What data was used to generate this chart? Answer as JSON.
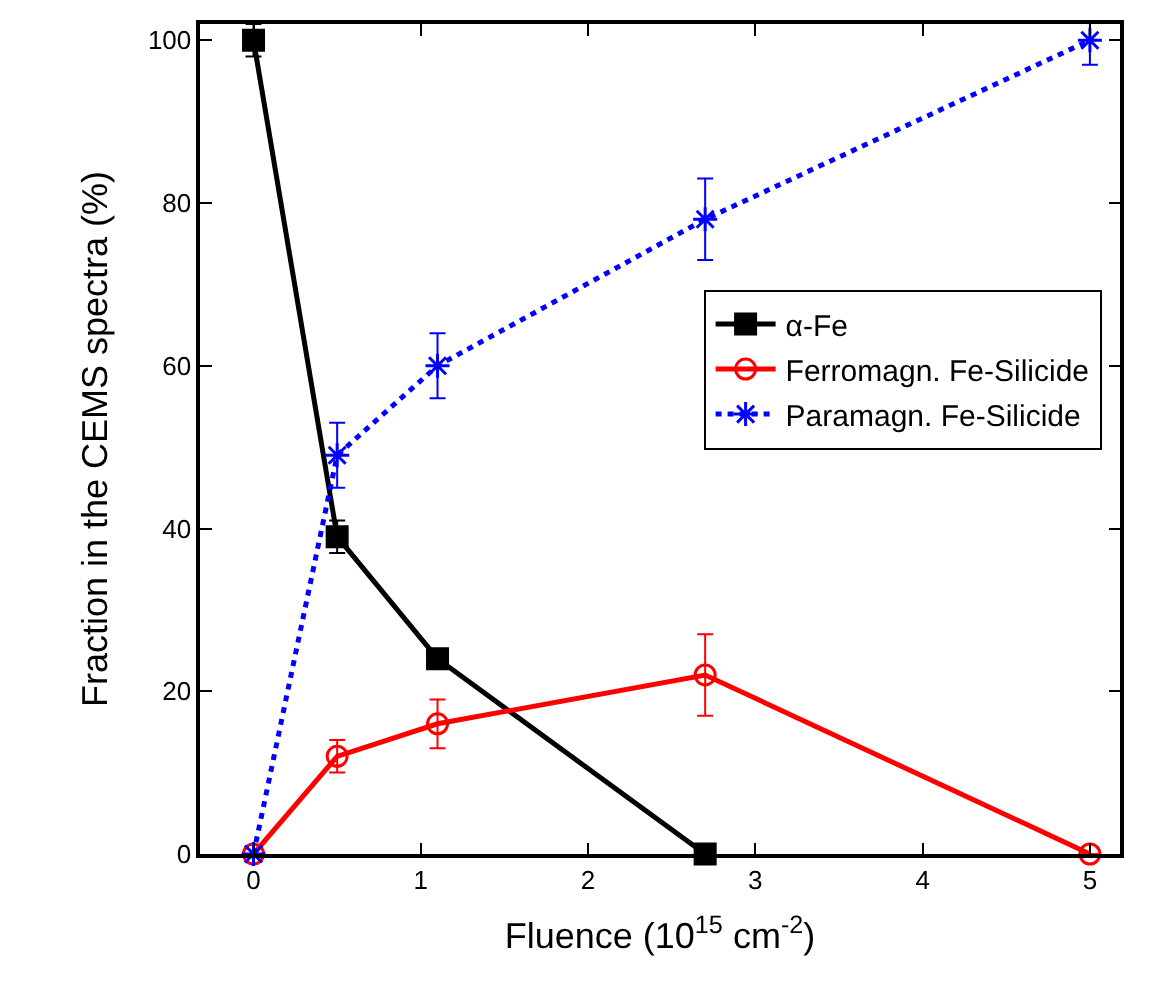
{
  "chart_data": {
    "type": "line",
    "xlabel": "Fluence (10$^{15}$ cm$^{-2}$)",
    "ylabel": "Fraction in the CEMS spectra (%)",
    "xlim": [
      -0.32,
      5.18
    ],
    "ylim": [
      0,
      102
    ],
    "xticks": [
      0,
      1,
      2,
      3,
      4,
      5
    ],
    "yticks": [
      0,
      20,
      40,
      60,
      80,
      100
    ],
    "legend": "right",
    "series": [
      {
        "name": "α-Fe",
        "color": "#000000",
        "x": [
          0,
          0.5,
          1.1,
          2.7
        ],
        "values": [
          100,
          39,
          24,
          0
        ],
        "errors": [
          2,
          2,
          null,
          null
        ],
        "marker": "square",
        "line_style": "solid"
      },
      {
        "name": "Ferromagn. Fe-Silicide",
        "color": "#ff0000",
        "x": [
          0,
          0.5,
          1.1,
          2.7,
          5
        ],
        "values": [
          0,
          12,
          16,
          22,
          0
        ],
        "errors": [
          null,
          2,
          3,
          5,
          null
        ],
        "marker": "circle",
        "line_style": "solid"
      },
      {
        "name": "Paramagn. Fe-Silicide",
        "color": "#0000ff",
        "x": [
          0,
          0.5,
          1.1,
          2.7,
          5
        ],
        "values": [
          0,
          49,
          60,
          78,
          100
        ],
        "errors": [
          null,
          4,
          4,
          5,
          3
        ],
        "marker": "cross",
        "line_style": "dotted"
      }
    ]
  }
}
